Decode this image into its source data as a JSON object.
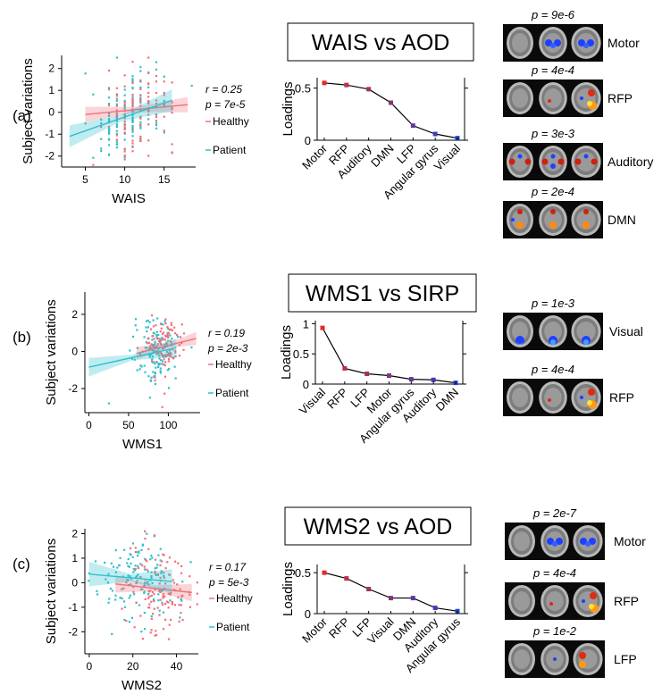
{
  "rows": [
    {
      "label": "(a)",
      "scatter": {
        "xlabel": "WAIS",
        "ylabel": "Subject variations",
        "xticks": [
          5,
          10,
          15
        ],
        "xlim": [
          2,
          19
        ],
        "yticks": [
          -2,
          -1,
          0,
          1,
          2
        ],
        "ylim": [
          -2.5,
          2.6
        ],
        "r_text": "r = 0.25",
        "p_text": "p = 7e-5",
        "legend": [
          "Healthy",
          "Patient"
        ],
        "healthy_fit": [
          [
            5,
            -0.1
          ],
          [
            18,
            0.35
          ]
        ],
        "patient_fit": [
          [
            3,
            -1.1
          ],
          [
            16,
            0.55
          ]
        ]
      },
      "title": "WAIS vs AOD",
      "loadings": {
        "type": "line",
        "ylabel": "Loadings",
        "categories": [
          "Motor",
          "RFP",
          "Auditory",
          "DMN",
          "LFP",
          "Angular gyrus",
          "Visual"
        ],
        "values": [
          0.55,
          0.53,
          0.49,
          0.36,
          0.14,
          0.06,
          0.02
        ],
        "yticks": [
          0,
          0.5
        ],
        "ylim": [
          0,
          0.6
        ]
      },
      "brains": [
        {
          "p": "p = 9e-6",
          "name": "Motor"
        },
        {
          "p": "p = 4e-4",
          "name": "RFP"
        },
        {
          "p": "p = 3e-3",
          "name": "Auditory"
        },
        {
          "p": "p = 2e-4",
          "name": "DMN"
        }
      ]
    },
    {
      "label": "(b)",
      "scatter": {
        "xlabel": "WMS1",
        "ylabel": "Subject variations",
        "xticks": [
          0,
          50,
          100
        ],
        "xlim": [
          -5,
          140
        ],
        "yticks": [
          -2,
          0,
          2
        ],
        "ylim": [
          -3.3,
          3.2
        ],
        "r_text": "r = 0.19",
        "p_text": "p = 2e-3",
        "legend": [
          "Healthy",
          "Patient"
        ],
        "healthy_fit": [
          [
            60,
            -0.1
          ],
          [
            135,
            0.7
          ]
        ],
        "patient_fit": [
          [
            0,
            -0.85
          ],
          [
            110,
            0.2
          ]
        ]
      },
      "title": "WMS1 vs SIRP",
      "loadings": {
        "type": "line",
        "ylabel": "Loadings",
        "categories": [
          "Visual",
          "RFP",
          "LFP",
          "Motor",
          "Angular gyrus",
          "Auditory",
          "DMN"
        ],
        "values": [
          0.93,
          0.26,
          0.17,
          0.14,
          0.08,
          0.07,
          0.02
        ],
        "yticks": [
          0,
          0.5,
          1
        ],
        "ylim": [
          0,
          1.05
        ]
      },
      "brains": [
        {
          "p": "p = 1e-3",
          "name": "Visual"
        },
        {
          "p": "p = 4e-4",
          "name": "RFP"
        }
      ]
    },
    {
      "label": "(c)",
      "scatter": {
        "xlabel": "WMS2",
        "ylabel": "Subject variations",
        "xticks": [
          0,
          20,
          40
        ],
        "xlim": [
          -2,
          50
        ],
        "yticks": [
          -2,
          -1,
          0,
          1,
          2
        ],
        "ylim": [
          -2.9,
          2.2
        ],
        "r_text": "r = 0.17",
        "p_text": "p = 5e-3",
        "legend": [
          "Healthy",
          "Patient"
        ],
        "healthy_fit": [
          [
            12,
            -0.05
          ],
          [
            47,
            -0.4
          ]
        ],
        "patient_fit": [
          [
            0,
            0.35
          ],
          [
            38,
            0.05
          ]
        ]
      },
      "title": "WMS2 vs AOD",
      "loadings": {
        "type": "line",
        "ylabel": "Loadings",
        "categories": [
          "Motor",
          "RFP",
          "LFP",
          "Visual",
          "DMN",
          "Auditory",
          "Angular gyrus"
        ],
        "values": [
          0.5,
          0.43,
          0.3,
          0.19,
          0.19,
          0.07,
          0.03
        ],
        "yticks": [
          0,
          0.5
        ],
        "ylim": [
          0,
          0.6
        ]
      },
      "brains": [
        {
          "p": "p = 2e-7",
          "name": "Motor"
        },
        {
          "p": "p = 4e-4",
          "name": "RFP"
        },
        {
          "p": "p = 1e-2",
          "name": "LFP"
        }
      ]
    }
  ],
  "colors": {
    "healthy": "#f0707a",
    "patient": "#2fc0cc",
    "loading_line": "#000000",
    "loading_top": "#e02b2b",
    "loading_bottom": "#2040d0"
  }
}
